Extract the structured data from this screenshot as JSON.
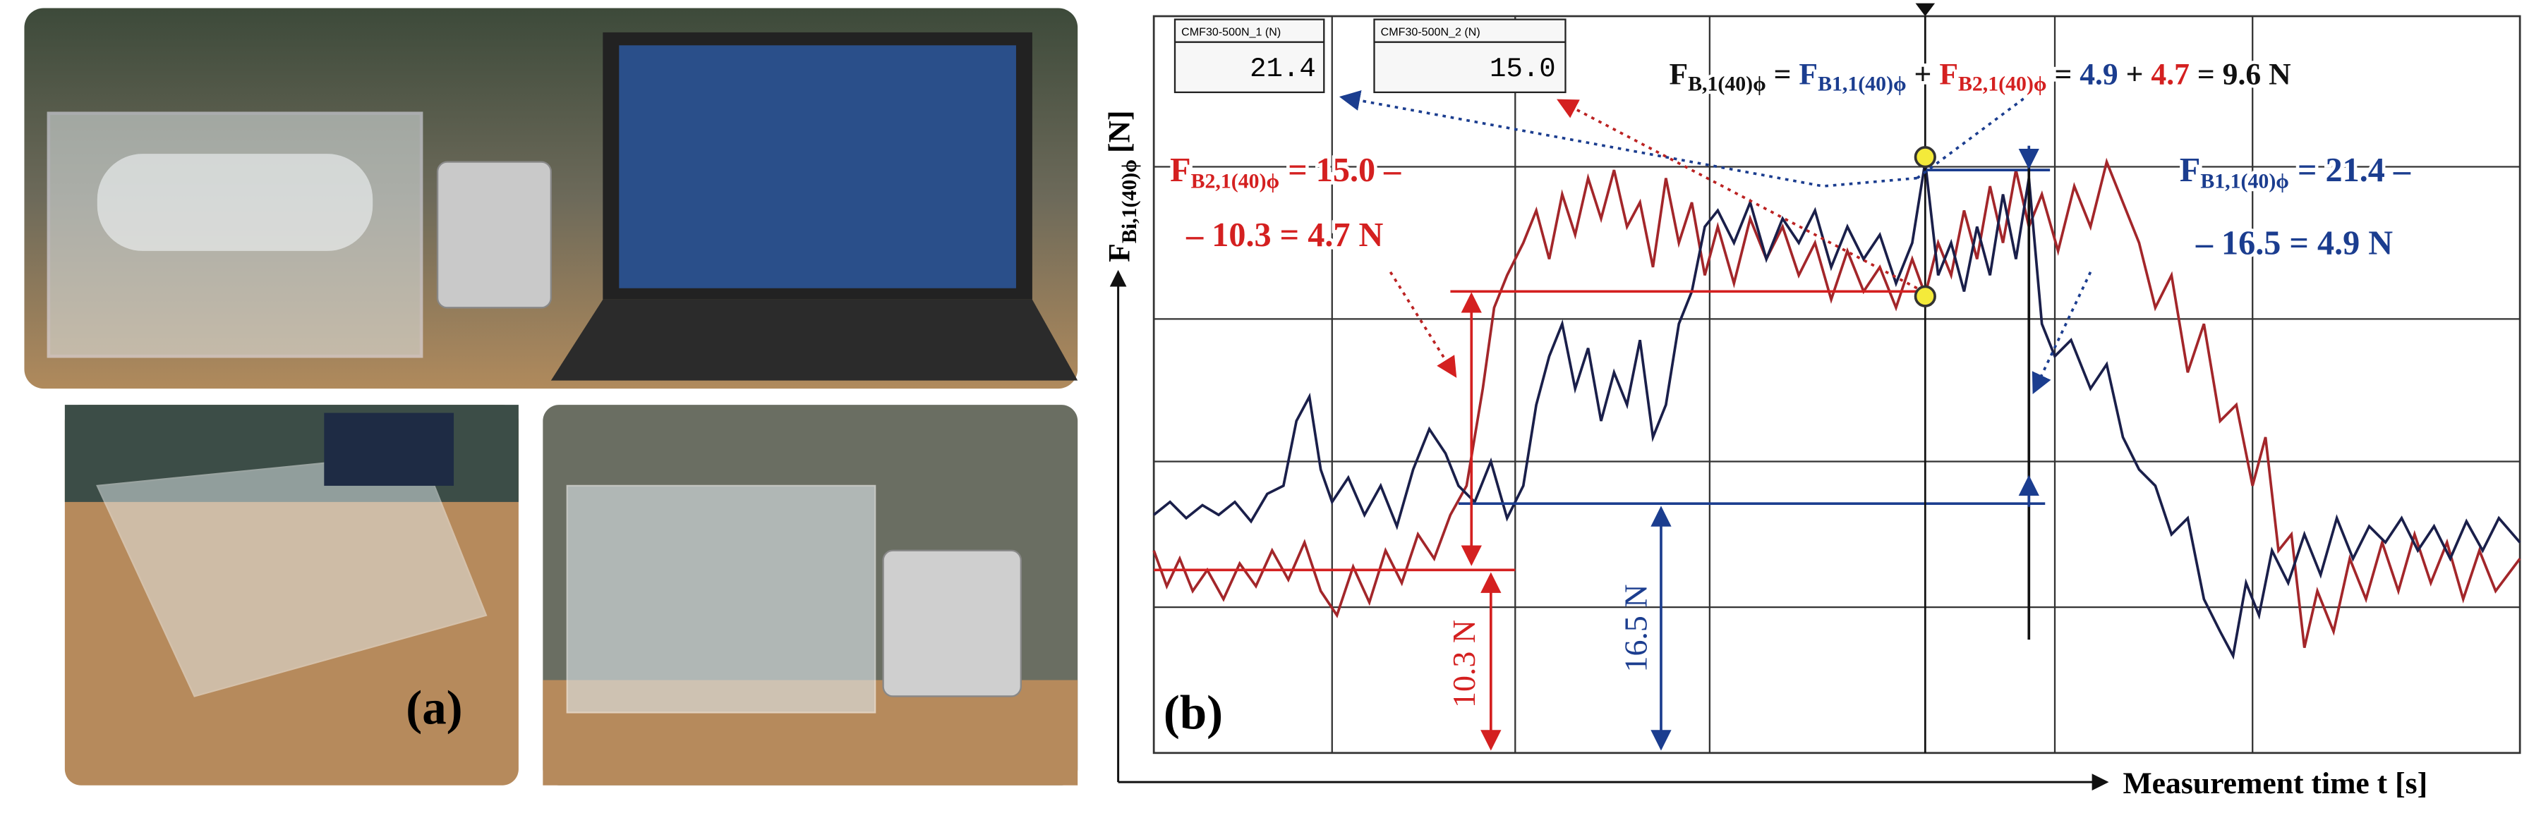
{
  "panel_a": {
    "label": "(a)"
  },
  "panel_b": {
    "label": "(b)",
    "y_axis_label": {
      "symbol": "F",
      "subscript": "Bi,1(40)ϕ",
      "unit": "[N]"
    },
    "x_axis_label": "Measurement time t [s]",
    "readouts": [
      {
        "channel": "CMF30-500N_1 (N)",
        "value": "21.4"
      },
      {
        "channel": "CMF30-500N_2 (N)",
        "value": "15.0"
      }
    ],
    "equation": [
      "F",
      "B,1(40)ϕ",
      " = ",
      "F",
      "B1,1(40)ϕ",
      " + ",
      "F",
      "B2,1(40)ϕ",
      " = ",
      "4.9",
      " + ",
      "4.7",
      " = 9.6 N"
    ],
    "red_note": {
      "symbol": "F",
      "subscript": "B2,1(40)ϕ",
      "line1": " = 15.0 –",
      "line2": "– 10.3 = 4.7 N"
    },
    "blue_note": {
      "symbol": "F",
      "subscript": "B1,1(40)ϕ",
      "line1": " = 21.4 –",
      "line2": "– 16.5 = 4.9 N"
    },
    "red_dimension": "10.3 N",
    "blue_dimension": "16.5 N"
  }
}
